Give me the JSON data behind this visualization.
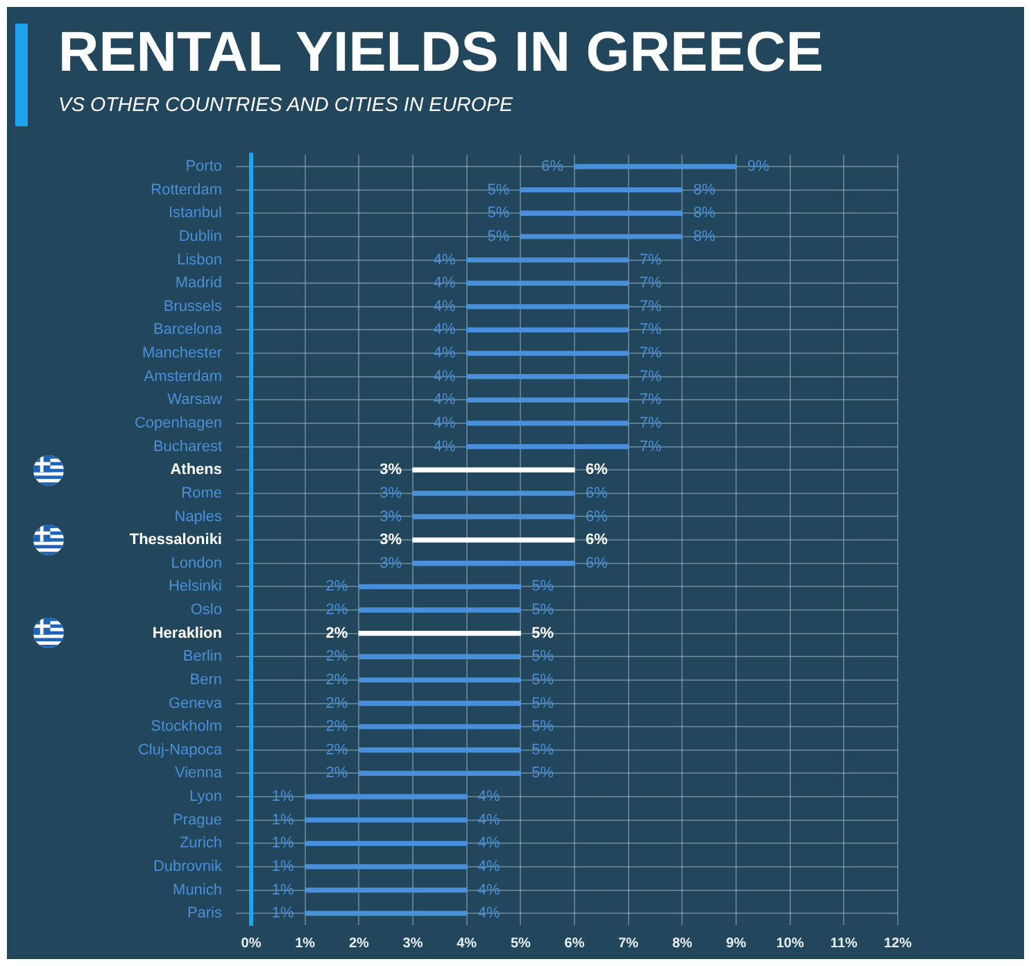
{
  "chart_data": {
    "type": "bar",
    "title": "RENTAL YIELDS IN GREECE",
    "subtitle": "VS OTHER COUNTRIES AND CITIES IN EUROPE",
    "orientation": "horizontal",
    "categories": [
      "Porto",
      "Rotterdam",
      "Istanbul",
      "Dublin",
      "Lisbon",
      "Madrid",
      "Brussels",
      "Barcelona",
      "Manchester",
      "Amsterdam",
      "Warsaw",
      "Copenhagen",
      "Bucharest",
      "Athens",
      "Rome",
      "Naples",
      "Thessaloniki",
      "London",
      "Helsinki",
      "Oslo",
      "Heraklion",
      "Berlin",
      "Bern",
      "Geneva",
      "Stockholm",
      "Cluj-Napoca",
      "Vienna",
      "Lyon",
      "Prague",
      "Zurich",
      "Dubrovnik",
      "Munich",
      "Paris"
    ],
    "base": [
      6,
      5,
      5,
      5,
      4,
      4,
      4,
      4,
      4,
      4,
      4,
      4,
      4,
      3,
      3,
      3,
      3,
      3,
      2,
      2,
      2,
      2,
      2,
      2,
      2,
      2,
      2,
      1,
      1,
      1,
      1,
      1,
      1
    ],
    "values": [
      3,
      3,
      3,
      3,
      3,
      3,
      3,
      3,
      3,
      3,
      3,
      3,
      3,
      3,
      3,
      3,
      3,
      3,
      3,
      3,
      3,
      3,
      3,
      3,
      3,
      3,
      3,
      3,
      3,
      3,
      3,
      3,
      3
    ],
    "colors": [
      "#4a8fd9",
      "#4a8fd9",
      "#4a8fd9",
      "#4a8fd9",
      "#4a8fd9",
      "#4a8fd9",
      "#4a8fd9",
      "#4a8fd9",
      "#4a8fd9",
      "#4a8fd9",
      "#4a8fd9",
      "#4a8fd9",
      "#4a8fd9",
      "#ffffff",
      "#4a8fd9",
      "#4a8fd9",
      "#ffffff",
      "#4a8fd9",
      "#4a8fd9",
      "#4a8fd9",
      "#ffffff",
      "#4a8fd9",
      "#4a8fd9",
      "#4a8fd9",
      "#4a8fd9",
      "#4a8fd9",
      "#4a8fd9",
      "#4a8fd9",
      "#4a8fd9",
      "#4a8fd9",
      "#4a8fd9",
      "#4a8fd9",
      "#4a8fd9"
    ],
    "xlim": [
      0,
      12
    ],
    "xticks": [
      {
        "value": 0,
        "label": "0%"
      },
      {
        "value": 1,
        "label": "1%"
      },
      {
        "value": 2,
        "label": "2%"
      },
      {
        "value": 3,
        "label": "3%"
      },
      {
        "value": 4,
        "label": "4%"
      },
      {
        "value": 5,
        "label": "5%"
      },
      {
        "value": 6,
        "label": "6%"
      },
      {
        "value": 7,
        "label": "7%"
      },
      {
        "value": 8,
        "label": "8%"
      },
      {
        "value": 9,
        "label": "9%"
      },
      {
        "value": 10,
        "label": "10%"
      },
      {
        "value": 11,
        "label": "11%"
      },
      {
        "value": 12,
        "label": "12%"
      }
    ],
    "grid": true,
    "annotations": [
      {
        "text": "6%",
        "x": 6,
        "y": "Porto"
      },
      {
        "text": "9%",
        "x": 9,
        "y": "Porto"
      },
      {
        "text": "5%",
        "x": 5,
        "y": "Rotterdam"
      },
      {
        "text": "8%",
        "x": 8,
        "y": "Rotterdam"
      },
      {
        "text": "5%",
        "x": 5,
        "y": "Istanbul"
      },
      {
        "text": "8%",
        "x": 8,
        "y": "Istanbul"
      },
      {
        "text": "5%",
        "x": 5,
        "y": "Dublin"
      },
      {
        "text": "8%",
        "x": 8,
        "y": "Dublin"
      },
      {
        "text": "4%",
        "x": 4,
        "y": "Lisbon"
      },
      {
        "text": "7%",
        "x": 7,
        "y": "Lisbon"
      },
      {
        "text": "4%",
        "x": 4,
        "y": "Madrid"
      },
      {
        "text": "7%",
        "x": 7,
        "y": "Madrid"
      },
      {
        "text": "4%",
        "x": 4,
        "y": "Brussels"
      },
      {
        "text": "7%",
        "x": 7,
        "y": "Brussels"
      },
      {
        "text": "4%",
        "x": 4,
        "y": "Barcelona"
      },
      {
        "text": "7%",
        "x": 7,
        "y": "Barcelona"
      },
      {
        "text": "4%",
        "x": 4,
        "y": "Manchester"
      },
      {
        "text": "7%",
        "x": 7,
        "y": "Manchester"
      },
      {
        "text": "4%",
        "x": 4,
        "y": "Amsterdam"
      },
      {
        "text": "7%",
        "x": 7,
        "y": "Amsterdam"
      },
      {
        "text": "4%",
        "x": 4,
        "y": "Warsaw"
      },
      {
        "text": "7%",
        "x": 7,
        "y": "Warsaw"
      },
      {
        "text": "4%",
        "x": 4,
        "y": "Copenhagen"
      },
      {
        "text": "7%",
        "x": 7,
        "y": "Copenhagen"
      },
      {
        "text": "4%",
        "x": 4,
        "y": "Bucharest"
      },
      {
        "text": "7%",
        "x": 7,
        "y": "Bucharest"
      },
      {
        "text": "3%",
        "x": 3,
        "y": "Athens"
      },
      {
        "text": "6%",
        "x": 6,
        "y": "Athens"
      },
      {
        "text": "3%",
        "x": 3,
        "y": "Rome"
      },
      {
        "text": "6%",
        "x": 6,
        "y": "Rome"
      },
      {
        "text": "3%",
        "x": 3,
        "y": "Naples"
      },
      {
        "text": "6%",
        "x": 6,
        "y": "Naples"
      },
      {
        "text": "3%",
        "x": 3,
        "y": "Thessaloniki"
      },
      {
        "text": "6%",
        "x": 6,
        "y": "Thessaloniki"
      },
      {
        "text": "3%",
        "x": 3,
        "y": "London"
      },
      {
        "text": "6%",
        "x": 6,
        "y": "London"
      },
      {
        "text": "2%",
        "x": 2,
        "y": "Helsinki"
      },
      {
        "text": "5%",
        "x": 5,
        "y": "Helsinki"
      },
      {
        "text": "2%",
        "x": 2,
        "y": "Oslo"
      },
      {
        "text": "5%",
        "x": 5,
        "y": "Oslo"
      },
      {
        "text": "2%",
        "x": 2,
        "y": "Heraklion"
      },
      {
        "text": "5%",
        "x": 5,
        "y": "Heraklion"
      },
      {
        "text": "2%",
        "x": 2,
        "y": "Berlin"
      },
      {
        "text": "5%",
        "x": 5,
        "y": "Berlin"
      },
      {
        "text": "2%",
        "x": 2,
        "y": "Bern"
      },
      {
        "text": "5%",
        "x": 5,
        "y": "Bern"
      },
      {
        "text": "2%",
        "x": 2,
        "y": "Geneva"
      },
      {
        "text": "5%",
        "x": 5,
        "y": "Geneva"
      },
      {
        "text": "2%",
        "x": 2,
        "y": "Stockholm"
      },
      {
        "text": "5%",
        "x": 5,
        "y": "Stockholm"
      },
      {
        "text": "2%",
        "x": 2,
        "y": "Cluj-Napoca"
      },
      {
        "text": "5%",
        "x": 5,
        "y": "Cluj-Napoca"
      },
      {
        "text": "2%",
        "x": 2,
        "y": "Vienna"
      },
      {
        "text": "5%",
        "x": 5,
        "y": "Vienna"
      },
      {
        "text": "1%",
        "x": 1,
        "y": "Lyon"
      },
      {
        "text": "4%",
        "x": 4,
        "y": "Lyon"
      },
      {
        "text": "1%",
        "x": 1,
        "y": "Prague"
      },
      {
        "text": "4%",
        "x": 4,
        "y": "Prague"
      },
      {
        "text": "1%",
        "x": 1,
        "y": "Zurich"
      },
      {
        "text": "4%",
        "x": 4,
        "y": "Zurich"
      },
      {
        "text": "1%",
        "x": 1,
        "y": "Dubrovnik"
      },
      {
        "text": "4%",
        "x": 4,
        "y": "Dubrovnik"
      },
      {
        "text": "1%",
        "x": 1,
        "y": "Munich"
      },
      {
        "text": "4%",
        "x": 4,
        "y": "Munich"
      },
      {
        "text": "1%",
        "x": 1,
        "y": "Paris"
      },
      {
        "text": "4%",
        "x": 4,
        "y": "Paris"
      }
    ]
  }
}
